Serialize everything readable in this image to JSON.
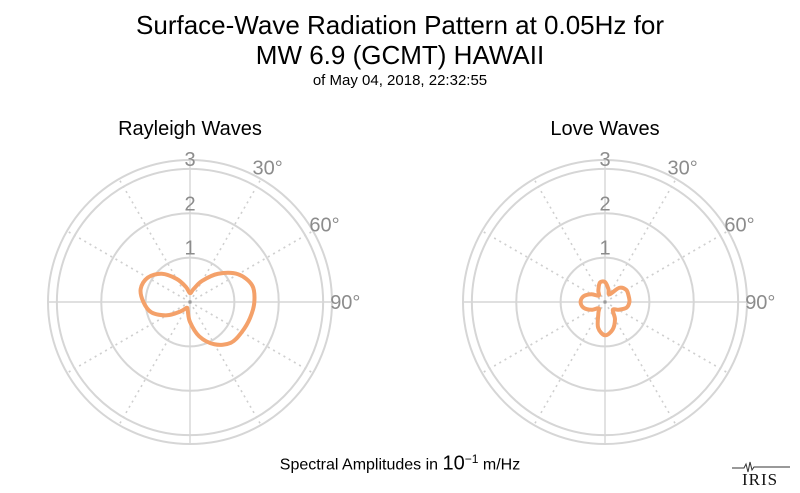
{
  "title": {
    "line1": "Surface-Wave Radiation Pattern at 0.05Hz for",
    "line2": "MW 6.9 (GCMT) HAWAII",
    "subtitle": "of May 04, 2018, 22:32:55"
  },
  "footer": {
    "prefix": "Spectral Amplitudes in ",
    "base": "10",
    "exponent": "−1",
    "unit": " m/Hz"
  },
  "logo": {
    "text": "IRIS"
  },
  "colors": {
    "pattern": "#f4a16a",
    "grid_solid": "#d6d6d6",
    "grid_dotted": "#cfcfcf",
    "tick_label": "#8c8c8c"
  },
  "chart_data": [
    {
      "type": "polar-line",
      "title": "Rayleigh Waves",
      "radial_ticks": [
        "1",
        "2",
        "3"
      ],
      "r_max": 3.2,
      "angle_ticks": [
        "30°",
        "60°",
        "90°"
      ],
      "direction": "clockwise from north",
      "series": [
        {
          "angles_deg": [
            0,
            15,
            30,
            45,
            60,
            75,
            90,
            105,
            120,
            135,
            150,
            165,
            180,
            195,
            210,
            225,
            240,
            255,
            270,
            285,
            300,
            315,
            330,
            345
          ],
          "values": [
            0.2,
            0.3,
            0.55,
            0.9,
            1.25,
            1.45,
            1.45,
            1.4,
            1.35,
            1.3,
            1.1,
            0.8,
            0.45,
            0.2,
            0.15,
            0.3,
            0.6,
            0.9,
            1.05,
            1.15,
            1.1,
            0.9,
            0.6,
            0.35
          ]
        }
      ]
    },
    {
      "type": "polar-line",
      "title": "Love Waves",
      "radial_ticks": [
        "1",
        "2",
        "3"
      ],
      "r_max": 3.2,
      "angle_ticks": [
        "30°",
        "60°",
        "90°"
      ],
      "direction": "clockwise from north",
      "series": [
        {
          "angles_deg": [
            0,
            15,
            30,
            45,
            60,
            75,
            90,
            105,
            120,
            135,
            150,
            165,
            180,
            195,
            210,
            225,
            240,
            255,
            270,
            285,
            300,
            315,
            330,
            345
          ],
          "values": [
            0.45,
            0.3,
            0.2,
            0.45,
            0.55,
            0.55,
            0.55,
            0.5,
            0.35,
            0.25,
            0.45,
            0.65,
            0.75,
            0.6,
            0.3,
            0.2,
            0.35,
            0.5,
            0.55,
            0.5,
            0.35,
            0.2,
            0.3,
            0.45
          ]
        }
      ]
    }
  ]
}
